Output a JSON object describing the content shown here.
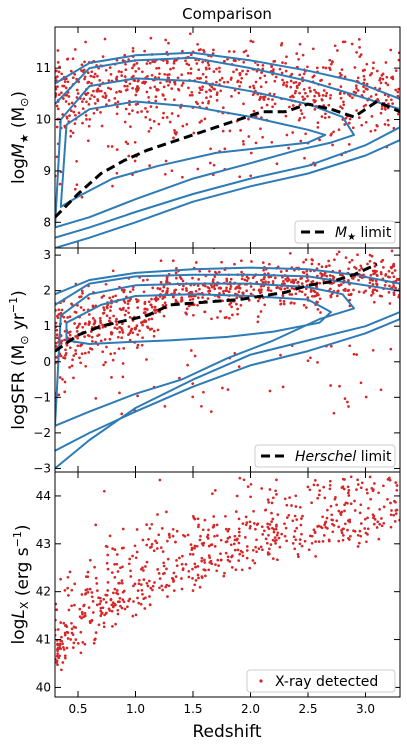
{
  "title": "Comparison",
  "x_label": "Redshift",
  "colors": {
    "points": "#d62728",
    "contour": "#2e7bb5",
    "limit": "#000000"
  },
  "chart_data": [
    {
      "id": "mass",
      "type": "scatter",
      "ylabel_parts": {
        "prefix": "log",
        "var": "M",
        "sub": "★",
        "unit": " (M",
        "unit_sub": "⊙",
        "close": ")"
      },
      "xlim": [
        0.3,
        3.3
      ],
      "ylim": [
        7.5,
        11.8
      ],
      "xticks": [
        0.5,
        1.0,
        1.5,
        2.0,
        2.5,
        3.0
      ],
      "yticks": [
        8,
        9,
        10,
        11
      ],
      "legend_position": "bottom-right",
      "legend": {
        "var": "M",
        "sub": "★",
        "text": " limit"
      },
      "limit_line": {
        "x": [
          0.3,
          0.5,
          0.7,
          0.9,
          1.1,
          1.3,
          1.5,
          1.7,
          1.9,
          2.1,
          2.3,
          2.5,
          2.7,
          2.9,
          3.1,
          3.3
        ],
        "y": [
          8.1,
          8.55,
          8.95,
          9.2,
          9.4,
          9.55,
          9.7,
          9.85,
          10.0,
          10.15,
          10.15,
          10.3,
          10.2,
          10.05,
          10.35,
          10.15
        ]
      },
      "contours": [
        {
          "x": [
            0.3,
            0.6,
            1.0,
            1.5,
            2.0,
            2.5,
            2.9,
            3.3,
            3.3,
            3.0,
            2.5,
            2.0,
            1.5,
            1.0,
            0.6,
            0.3
          ],
          "y": [
            10.7,
            11.1,
            11.25,
            11.3,
            11.15,
            10.95,
            10.75,
            10.4,
            9.6,
            9.3,
            8.95,
            8.7,
            8.4,
            8.0,
            7.7,
            7.5
          ]
        },
        {
          "x": [
            0.3,
            0.6,
            1.0,
            1.5,
            2.0,
            2.5,
            2.8,
            3.3,
            3.3,
            3.0,
            2.5,
            2.0,
            1.5,
            1.0,
            0.6,
            0.3
          ],
          "y": [
            10.3,
            11.0,
            11.15,
            11.2,
            11.0,
            10.75,
            10.55,
            10.2,
            9.85,
            9.5,
            9.1,
            8.85,
            8.55,
            8.2,
            7.9,
            7.7
          ]
        },
        {
          "x": [
            0.35,
            0.6,
            1.0,
            1.5,
            2.0,
            2.5,
            2.8,
            2.9,
            2.7,
            2.4,
            2.0,
            1.5,
            1.0,
            0.6,
            0.3
          ],
          "y": [
            10.0,
            10.65,
            10.8,
            10.75,
            10.55,
            10.3,
            10.05,
            9.7,
            9.55,
            9.4,
            9.15,
            8.85,
            8.45,
            8.1,
            7.9
          ]
        },
        {
          "x": [
            0.4,
            0.6,
            1.0,
            1.5,
            2.0,
            2.5,
            2.65,
            2.5,
            2.1,
            1.7,
            1.2,
            0.8,
            0.5,
            0.35
          ],
          "y": [
            9.9,
            10.2,
            10.35,
            10.25,
            10.05,
            9.8,
            9.7,
            9.55,
            9.45,
            9.35,
            9.1,
            8.85,
            8.5,
            8.3
          ]
        }
      ],
      "point_count": 820
    },
    {
      "id": "sfr",
      "type": "scatter",
      "ylabel_parts": {
        "prefix": "logSFR (M",
        "unit_sub": "⊙",
        "suffix": " yr",
        "sup": "−1",
        "close": ")"
      },
      "xlim": [
        0.3,
        3.3
      ],
      "ylim": [
        -3.1,
        3.2
      ],
      "xticks": [
        0.5,
        1.0,
        1.5,
        2.0,
        2.5,
        3.0
      ],
      "yticks": [
        -3,
        -2,
        -1,
        0,
        1,
        2,
        3
      ],
      "legend_position": "bottom-right",
      "legend": {
        "italic": "Herschel",
        "text": " limit"
      },
      "limit_line": {
        "x": [
          0.3,
          0.5,
          0.7,
          0.9,
          1.1,
          1.3,
          1.5,
          1.7,
          1.9,
          2.1,
          2.3,
          2.5,
          2.7,
          2.9,
          3.1
        ],
        "y": [
          0.3,
          0.75,
          1.0,
          1.15,
          1.3,
          1.6,
          1.65,
          1.7,
          1.75,
          1.85,
          1.95,
          2.15,
          2.25,
          2.45,
          2.75
        ]
      },
      "contours": [
        {
          "x": [
            0.3,
            0.6,
            1.0,
            1.5,
            2.0,
            2.5,
            2.9,
            3.3,
            3.3,
            3.0,
            2.5,
            2.0,
            1.5,
            1.0,
            0.6,
            0.3
          ],
          "y": [
            1.9,
            2.3,
            2.5,
            2.6,
            2.65,
            2.6,
            2.45,
            2.2,
            1.4,
            1.0,
            0.6,
            0.2,
            -0.5,
            -1.3,
            -2.2,
            -3.0
          ]
        },
        {
          "x": [
            0.3,
            0.6,
            1.0,
            1.5,
            2.0,
            2.5,
            2.8,
            3.3,
            3.3,
            3.0,
            2.5,
            2.0,
            1.5,
            1.0,
            0.6,
            0.3
          ],
          "y": [
            1.6,
            2.2,
            2.4,
            2.45,
            2.45,
            2.4,
            2.25,
            2.0,
            1.2,
            0.8,
            0.3,
            -0.1,
            -0.7,
            -1.4,
            -2.0,
            -2.5
          ]
        },
        {
          "x": [
            0.35,
            0.6,
            1.0,
            1.5,
            2.0,
            2.5,
            2.8,
            2.9,
            2.6,
            2.2,
            1.8,
            1.4,
            1.0,
            0.6,
            0.3
          ],
          "y": [
            1.3,
            1.9,
            2.15,
            2.2,
            2.2,
            2.1,
            1.9,
            1.5,
            1.2,
            0.6,
            0.1,
            -0.5,
            -0.9,
            -1.4,
            -1.8
          ]
        },
        {
          "x": [
            0.4,
            0.7,
            1.0,
            1.5,
            2.0,
            2.5,
            2.7,
            2.6,
            2.2,
            1.8,
            1.3,
            0.9,
            0.6,
            0.4
          ],
          "y": [
            1.1,
            1.6,
            1.85,
            1.9,
            1.85,
            1.75,
            1.4,
            1.1,
            0.85,
            0.7,
            0.6,
            0.55,
            0.5,
            0.6
          ]
        }
      ],
      "point_count": 900
    },
    {
      "id": "lx",
      "type": "scatter",
      "ylabel_parts": {
        "prefix": "log",
        "var": "L",
        "sub": "X",
        "suffix": " (erg s",
        "sup": "−1",
        "close": ")"
      },
      "xlim": [
        0.3,
        3.3
      ],
      "ylim": [
        39.8,
        44.5
      ],
      "xticks": [
        0.5,
        1.0,
        1.5,
        2.0,
        2.5,
        3.0
      ],
      "xticklabels": [
        "0.5",
        "1.0",
        "1.5",
        "2.0",
        "2.5",
        "3.0"
      ],
      "yticks": [
        40,
        41,
        42,
        43,
        44
      ],
      "legend_position": "bottom-right",
      "legend": {
        "text": "X-ray detected"
      },
      "point_count": 680
    }
  ]
}
